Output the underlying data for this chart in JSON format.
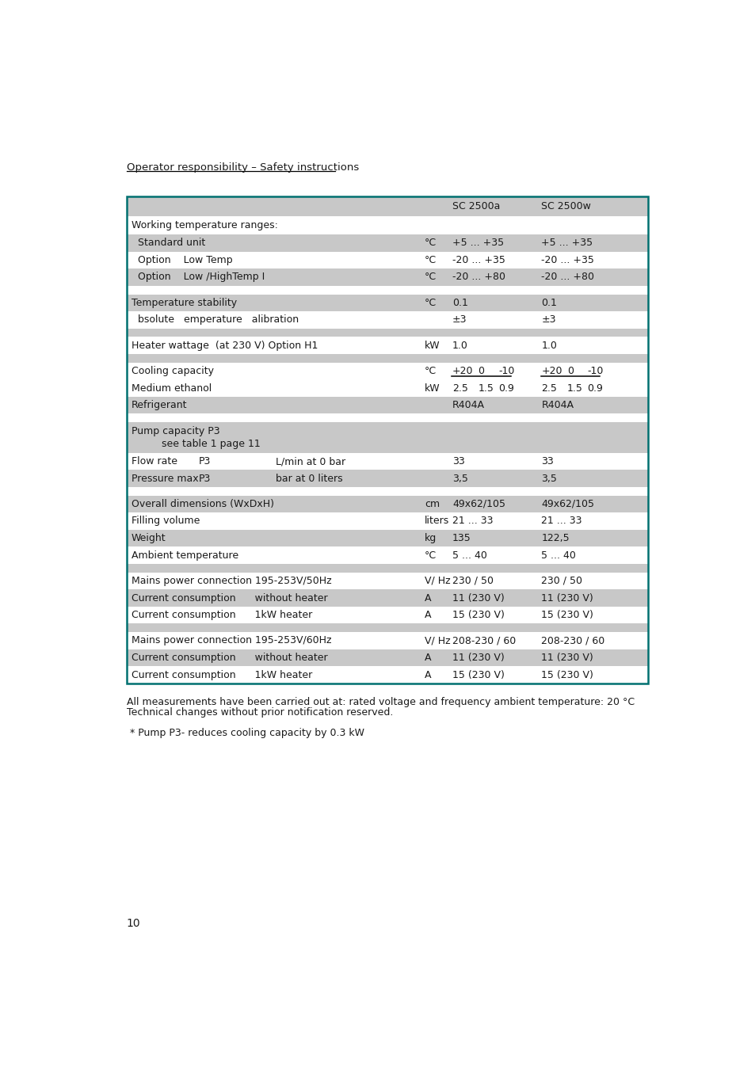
{
  "header_text": "Operator responsibility – Safety instructions",
  "border_color": "#007070",
  "bg_gray": "#c8c8c8",
  "bg_white": "#ffffff",
  "text_color": "#1a1a1a",
  "page_number": "10",
  "footer_lines": [
    "All measurements have been carried out at: rated voltage and frequency ambient temperature: 20 °C",
    "Technical changes without prior notification reserved.",
    "",
    " * Pump P3- reduces cooling capacity by 0.3 kW"
  ]
}
